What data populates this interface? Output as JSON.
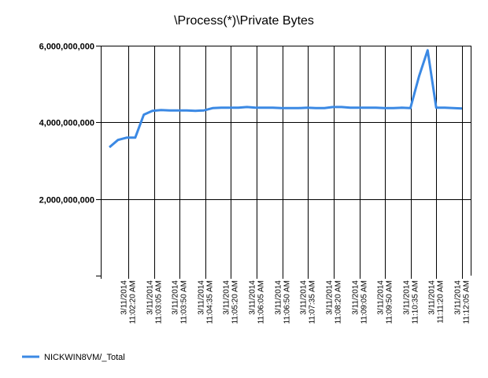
{
  "chart_data": {
    "type": "line",
    "title": "\\Process(*)\\Private Bytes",
    "xlabel": "",
    "ylabel": "",
    "ylim": [
      0,
      6000000000
    ],
    "y_ticks": [
      {
        "value": 2000000000,
        "label": "2,000,000,000"
      },
      {
        "value": 4000000000,
        "label": "4,000,000,000"
      },
      {
        "value": 6000000000,
        "label": "6,000,000,000"
      }
    ],
    "grid": true,
    "legend_position": "bottom-left",
    "x_tick_labels": [
      {
        "date": "3/11/2014",
        "time": "11:02:20 AM"
      },
      {
        "date": "3/11/2014",
        "time": "11:03:05 AM"
      },
      {
        "date": "3/11/2014",
        "time": "11:03:50 AM"
      },
      {
        "date": "3/11/2014",
        "time": "11:04:35 AM"
      },
      {
        "date": "3/11/2014",
        "time": "11:05:20 AM"
      },
      {
        "date": "3/11/2014",
        "time": "11:06:05 AM"
      },
      {
        "date": "3/11/2014",
        "time": "11:06:50 AM"
      },
      {
        "date": "3/11/2014",
        "time": "11:07:35 AM"
      },
      {
        "date": "3/11/2014",
        "time": "11:08:20 AM"
      },
      {
        "date": "3/11/2014",
        "time": "11:09:05 AM"
      },
      {
        "date": "3/11/2014",
        "time": "11:09:50 AM"
      },
      {
        "date": "3/11/2014",
        "time": "11:10:35 AM"
      },
      {
        "date": "3/11/2014",
        "time": "11:11:20 AM"
      },
      {
        "date": "3/11/2014",
        "time": "11:12:05 AM"
      }
    ],
    "x": [
      "11:01:50 AM",
      "11:02:05 AM",
      "11:02:20 AM",
      "11:02:35 AM",
      "11:02:50 AM",
      "11:03:05 AM",
      "11:03:20 AM",
      "11:03:35 AM",
      "11:03:50 AM",
      "11:04:05 AM",
      "11:04:20 AM",
      "11:04:35 AM",
      "11:04:50 AM",
      "11:05:05 AM",
      "11:05:20 AM",
      "11:05:35 AM",
      "11:05:50 AM",
      "11:06:05 AM",
      "11:06:20 AM",
      "11:06:35 AM",
      "11:06:50 AM",
      "11:07:05 AM",
      "11:07:20 AM",
      "11:07:35 AM",
      "11:07:50 AM",
      "11:08:05 AM",
      "11:08:20 AM",
      "11:08:35 AM",
      "11:08:50 AM",
      "11:09:05 AM",
      "11:09:20 AM",
      "11:09:35 AM",
      "11:09:50 AM",
      "11:10:05 AM",
      "11:10:20 AM",
      "11:10:35 AM",
      "11:10:50 AM",
      "11:11:05 AM",
      "11:11:20 AM",
      "11:11:35 AM",
      "11:11:50 AM",
      "11:12:05 AM"
    ],
    "series": [
      {
        "name": "NICKWIN8VM/_Total",
        "color": "#3B89E4",
        "values": [
          3350000000,
          3540000000,
          3600000000,
          3600000000,
          4200000000,
          4300000000,
          4320000000,
          4310000000,
          4310000000,
          4310000000,
          4300000000,
          4310000000,
          4370000000,
          4380000000,
          4380000000,
          4380000000,
          4400000000,
          4380000000,
          4380000000,
          4380000000,
          4370000000,
          4370000000,
          4370000000,
          4380000000,
          4370000000,
          4370000000,
          4400000000,
          4400000000,
          4380000000,
          4380000000,
          4380000000,
          4380000000,
          4370000000,
          4370000000,
          4380000000,
          4370000000,
          5200000000,
          5880000000,
          4380000000,
          4380000000,
          4370000000,
          4360000000
        ]
      }
    ]
  }
}
